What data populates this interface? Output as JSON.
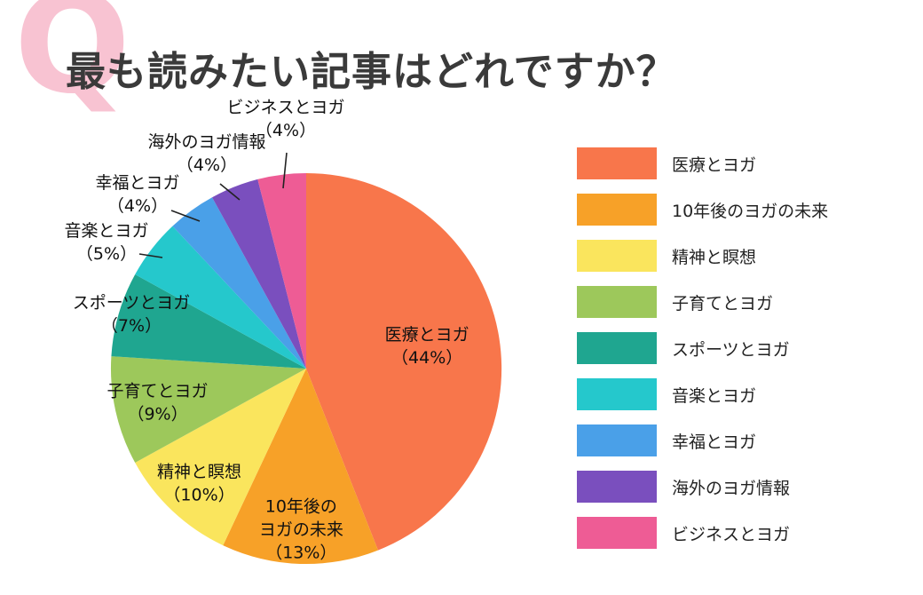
{
  "page": {
    "q_mark": "Q",
    "title": "最も読みたい記事はどれですか？",
    "background_color": "#ffffff",
    "q_mark_color": "#F8C3D2",
    "title_color": "#3a3a3a"
  },
  "chart_data": {
    "type": "pie",
    "title": "最も読みたい記事はどれですか？",
    "unit": "%",
    "direction": "clockwise",
    "start_angle_deg": 0,
    "legend_position": "right",
    "slices": [
      {
        "label": "医療とヨガ",
        "value": 44,
        "color": "#F8764B",
        "label_lines": [
          "医療とヨガ",
          "（44%）"
        ],
        "placement": "inside"
      },
      {
        "label": "10年後のヨガの未来",
        "value": 13,
        "color": "#F7A128",
        "label_lines": [
          "10年後の",
          "ヨガの未来",
          "（13%）"
        ],
        "placement": "inside"
      },
      {
        "label": "精神と瞑想",
        "value": 10,
        "color": "#FAE55D",
        "label_lines": [
          "精神と瞑想",
          "（10%）"
        ],
        "placement": "inside"
      },
      {
        "label": "子育てとヨガ",
        "value": 9,
        "color": "#9DC85B",
        "label_lines": [
          "子育てとヨガ",
          "（9%）"
        ],
        "placement": "inside"
      },
      {
        "label": "スポーツとヨガ",
        "value": 7,
        "color": "#1FA690",
        "label_lines": [
          "スポーツとヨガ",
          "（7%）"
        ],
        "placement": "outside"
      },
      {
        "label": "音楽とヨガ",
        "value": 5,
        "color": "#25C8CC",
        "label_lines": [
          "音楽とヨガ",
          "（5%）"
        ],
        "placement": "outside"
      },
      {
        "label": "幸福とヨガ",
        "value": 4,
        "color": "#4AA0E8",
        "label_lines": [
          "幸福とヨガ",
          "（4%）"
        ],
        "placement": "outside"
      },
      {
        "label": "海外のヨガ情報",
        "value": 4,
        "color": "#7A4FBE",
        "label_lines": [
          "海外のヨガ情報",
          "（4%）"
        ],
        "placement": "outside"
      },
      {
        "label": "ビジネスとヨガ",
        "value": 4,
        "color": "#EE5C95",
        "label_lines": [
          "ビジネスとヨガ",
          "（4%）"
        ],
        "placement": "outside"
      }
    ]
  }
}
